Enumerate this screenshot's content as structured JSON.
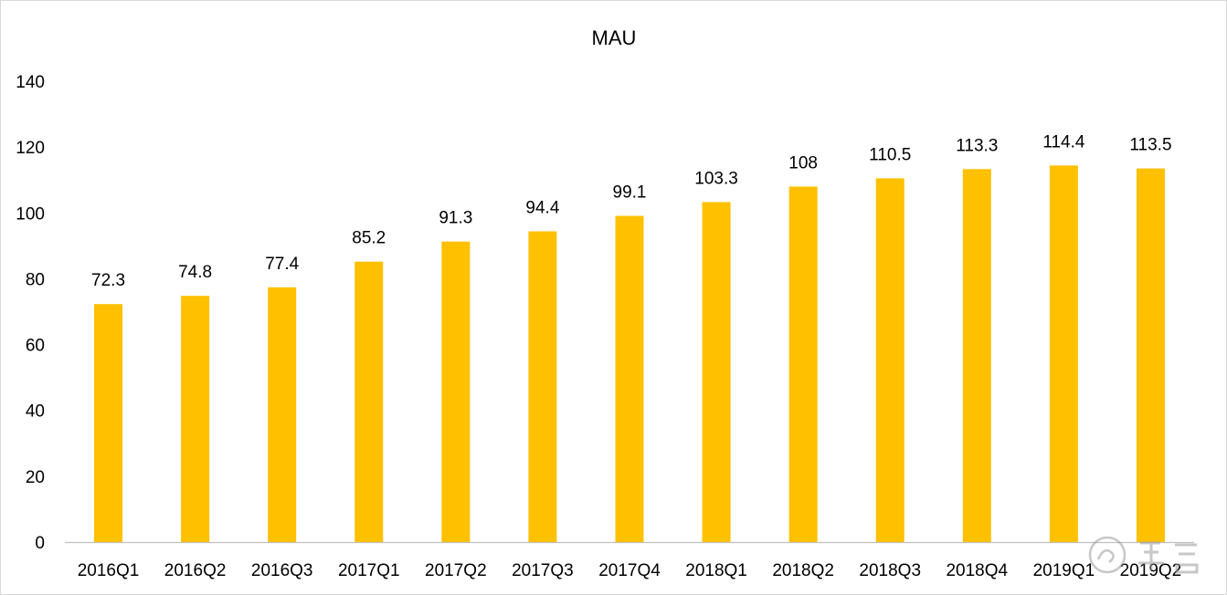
{
  "chart_data": {
    "type": "bar",
    "title": "MAU",
    "xlabel": "",
    "ylabel": "",
    "ylim": [
      0,
      140
    ],
    "yticks": [
      0,
      20,
      40,
      60,
      80,
      100,
      120,
      140
    ],
    "grid": false,
    "legend": "none",
    "categories": [
      "2016Q1",
      "2016Q2",
      "2016Q3",
      "2017Q1",
      "2017Q2",
      "2017Q3",
      "2017Q4",
      "2018Q1",
      "2018Q2",
      "2018Q3",
      "2018Q4",
      "2019Q1",
      "2019Q2"
    ],
    "values": [
      72.3,
      74.8,
      77.4,
      85.2,
      91.3,
      94.4,
      99.1,
      103.3,
      108,
      110.5,
      113.3,
      114.4,
      113.5
    ],
    "data_labels": [
      "72.3",
      "74.8",
      "77.4",
      "85.2",
      "91.3",
      "94.4",
      "99.1",
      "103.3",
      "108",
      "110.5",
      "113.3",
      "114.4",
      "113.5"
    ],
    "bar_color": "#FFC000"
  }
}
